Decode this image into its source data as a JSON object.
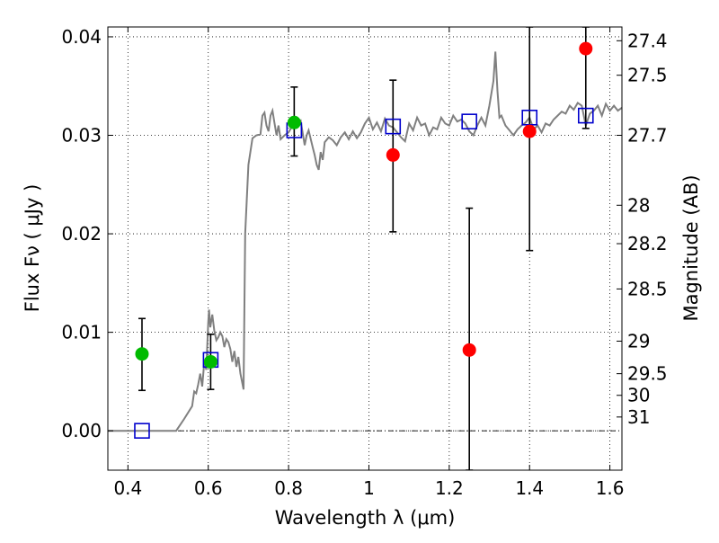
{
  "chart_data": {
    "type": "scatter",
    "title": "",
    "xlabel": "Wavelength  λ (μm)",
    "ylabel": "Flux  Fν  ( μJy )",
    "ylabel_right": "Magnitude (AB)",
    "xlim": [
      0.35,
      1.63
    ],
    "ylim": [
      -0.004,
      0.041
    ],
    "grid": true,
    "x_ticks": [
      0.4,
      0.6,
      0.8,
      1.0,
      1.2,
      1.4,
      1.6
    ],
    "x_tick_labels": [
      "0.4",
      "0.6",
      "0.8",
      "1",
      "1.2",
      "1.4",
      "1.6"
    ],
    "y_ticks": [
      0.0,
      0.01,
      0.02,
      0.03,
      0.04
    ],
    "y_tick_labels": [
      "0.00",
      "0.01",
      "0.02",
      "0.03",
      "0.04"
    ],
    "right_ticks": [
      {
        "label": "27.4",
        "flux": 0.0396
      },
      {
        "label": "27.5",
        "flux": 0.0361
      },
      {
        "label": "27.7",
        "flux": 0.03
      },
      {
        "label": "28",
        "flux": 0.0229
      },
      {
        "label": "28.2",
        "flux": 0.019
      },
      {
        "label": "28.5",
        "flux": 0.0144
      },
      {
        "label": "29",
        "flux": 0.0091
      },
      {
        "label": "29.5",
        "flux": 0.0058
      },
      {
        "label": "30",
        "flux": 0.0036
      },
      {
        "label": "31",
        "flux": 0.0014
      }
    ],
    "zero_line": {
      "y": 0.0,
      "style": "dash-dot"
    },
    "series": [
      {
        "kind": "model_spectrum",
        "color": "#808080",
        "points": [
          [
            0.35,
            0.0
          ],
          [
            0.5,
            0.0
          ],
          [
            0.52,
            0.0
          ],
          [
            0.54,
            0.0012
          ],
          [
            0.56,
            0.0025
          ],
          [
            0.565,
            0.004
          ],
          [
            0.57,
            0.0038
          ],
          [
            0.575,
            0.0047
          ],
          [
            0.58,
            0.0058
          ],
          [
            0.585,
            0.0045
          ],
          [
            0.59,
            0.007
          ],
          [
            0.595,
            0.0062
          ],
          [
            0.6,
            0.011
          ],
          [
            0.602,
            0.0123
          ],
          [
            0.605,
            0.0105
          ],
          [
            0.61,
            0.0118
          ],
          [
            0.615,
            0.0102
          ],
          [
            0.62,
            0.0092
          ],
          [
            0.625,
            0.0095
          ],
          [
            0.63,
            0.01
          ],
          [
            0.635,
            0.0096
          ],
          [
            0.64,
            0.0085
          ],
          [
            0.645,
            0.0093
          ],
          [
            0.65,
            0.009
          ],
          [
            0.655,
            0.0083
          ],
          [
            0.66,
            0.007
          ],
          [
            0.665,
            0.0081
          ],
          [
            0.67,
            0.0065
          ],
          [
            0.675,
            0.0075
          ],
          [
            0.68,
            0.0058
          ],
          [
            0.684,
            0.005
          ],
          [
            0.688,
            0.0042
          ],
          [
            0.692,
            0.02
          ],
          [
            0.7,
            0.027
          ],
          [
            0.71,
            0.0297
          ],
          [
            0.72,
            0.03
          ],
          [
            0.73,
            0.0301
          ],
          [
            0.735,
            0.032
          ],
          [
            0.74,
            0.0323
          ],
          [
            0.745,
            0.031
          ],
          [
            0.75,
            0.0304
          ],
          [
            0.755,
            0.032
          ],
          [
            0.76,
            0.0325
          ],
          [
            0.765,
            0.0312
          ],
          [
            0.77,
            0.03
          ],
          [
            0.775,
            0.031
          ],
          [
            0.78,
            0.0296
          ],
          [
            0.79,
            0.03
          ],
          [
            0.8,
            0.0303
          ],
          [
            0.81,
            0.031
          ],
          [
            0.82,
            0.0312
          ],
          [
            0.83,
            0.0315
          ],
          [
            0.84,
            0.029
          ],
          [
            0.845,
            0.03
          ],
          [
            0.85,
            0.0305
          ],
          [
            0.86,
            0.0288
          ],
          [
            0.865,
            0.028
          ],
          [
            0.87,
            0.027
          ],
          [
            0.875,
            0.0265
          ],
          [
            0.88,
            0.0283
          ],
          [
            0.885,
            0.0275
          ],
          [
            0.89,
            0.0293
          ],
          [
            0.9,
            0.0298
          ],
          [
            0.91,
            0.0295
          ],
          [
            0.92,
            0.029
          ],
          [
            0.93,
            0.0298
          ],
          [
            0.94,
            0.0303
          ],
          [
            0.95,
            0.0296
          ],
          [
            0.96,
            0.0304
          ],
          [
            0.97,
            0.0297
          ],
          [
            0.98,
            0.0303
          ],
          [
            0.99,
            0.0312
          ],
          [
            1.0,
            0.0318
          ],
          [
            1.01,
            0.0306
          ],
          [
            1.02,
            0.0313
          ],
          [
            1.03,
            0.0304
          ],
          [
            1.04,
            0.0317
          ],
          [
            1.05,
            0.031
          ],
          [
            1.06,
            0.0308
          ],
          [
            1.07,
            0.0303
          ],
          [
            1.08,
            0.0298
          ],
          [
            1.09,
            0.0294
          ],
          [
            1.1,
            0.0312
          ],
          [
            1.11,
            0.0305
          ],
          [
            1.12,
            0.0318
          ],
          [
            1.13,
            0.031
          ],
          [
            1.14,
            0.0312
          ],
          [
            1.15,
            0.03
          ],
          [
            1.16,
            0.0308
          ],
          [
            1.17,
            0.0306
          ],
          [
            1.18,
            0.0318
          ],
          [
            1.19,
            0.0312
          ],
          [
            1.2,
            0.031
          ],
          [
            1.21,
            0.032
          ],
          [
            1.22,
            0.0314
          ],
          [
            1.23,
            0.0316
          ],
          [
            1.24,
            0.0312
          ],
          [
            1.25,
            0.0304
          ],
          [
            1.26,
            0.03
          ],
          [
            1.27,
            0.031
          ],
          [
            1.28,
            0.0318
          ],
          [
            1.29,
            0.031
          ],
          [
            1.3,
            0.033
          ],
          [
            1.31,
            0.0355
          ],
          [
            1.315,
            0.0385
          ],
          [
            1.32,
            0.0345
          ],
          [
            1.325,
            0.0318
          ],
          [
            1.33,
            0.032
          ],
          [
            1.34,
            0.031
          ],
          [
            1.35,
            0.0305
          ],
          [
            1.36,
            0.03
          ],
          [
            1.37,
            0.0306
          ],
          [
            1.38,
            0.031
          ],
          [
            1.39,
            0.0313
          ],
          [
            1.4,
            0.0318
          ],
          [
            1.41,
            0.0306
          ],
          [
            1.42,
            0.031
          ],
          [
            1.43,
            0.0303
          ],
          [
            1.44,
            0.0312
          ],
          [
            1.45,
            0.031
          ],
          [
            1.46,
            0.0316
          ],
          [
            1.47,
            0.032
          ],
          [
            1.48,
            0.0324
          ],
          [
            1.49,
            0.0322
          ],
          [
            1.5,
            0.033
          ],
          [
            1.51,
            0.0326
          ],
          [
            1.52,
            0.0333
          ],
          [
            1.53,
            0.033
          ],
          [
            1.54,
            0.031
          ],
          [
            1.55,
            0.0322
          ],
          [
            1.56,
            0.0325
          ],
          [
            1.57,
            0.033
          ],
          [
            1.58,
            0.032
          ],
          [
            1.59,
            0.0332
          ],
          [
            1.6,
            0.0325
          ],
          [
            1.61,
            0.033
          ],
          [
            1.62,
            0.0325
          ],
          [
            1.63,
            0.0328
          ]
        ]
      },
      {
        "kind": "model_photometry",
        "marker": "open-square",
        "color": "#0000cc",
        "x": [
          0.435,
          0.606,
          0.814,
          1.06,
          1.25,
          1.4,
          1.54
        ],
        "y": [
          0.0,
          0.0072,
          0.0305,
          0.0309,
          0.0314,
          0.0318,
          0.032
        ]
      },
      {
        "kind": "detections",
        "marker": "filled-circle",
        "color": "#00bb00",
        "x": [
          0.435,
          0.606,
          0.814
        ],
        "y": [
          0.0078,
          0.007,
          0.0313
        ],
        "yerr_low": [
          0.0041,
          0.0042,
          0.0279
        ],
        "yerr_high": [
          0.0114,
          0.0098,
          0.0349
        ]
      },
      {
        "kind": "detections",
        "marker": "filled-circle",
        "color": "#ff0000",
        "x": [
          1.06,
          1.25,
          1.4,
          1.54
        ],
        "y": [
          0.028,
          0.0082,
          0.0304,
          0.0388
        ],
        "yerr_low": [
          0.0202,
          -0.004,
          0.0183,
          0.0307
        ],
        "yerr_high": [
          0.0356,
          0.0226,
          0.041,
          0.041
        ]
      }
    ]
  }
}
